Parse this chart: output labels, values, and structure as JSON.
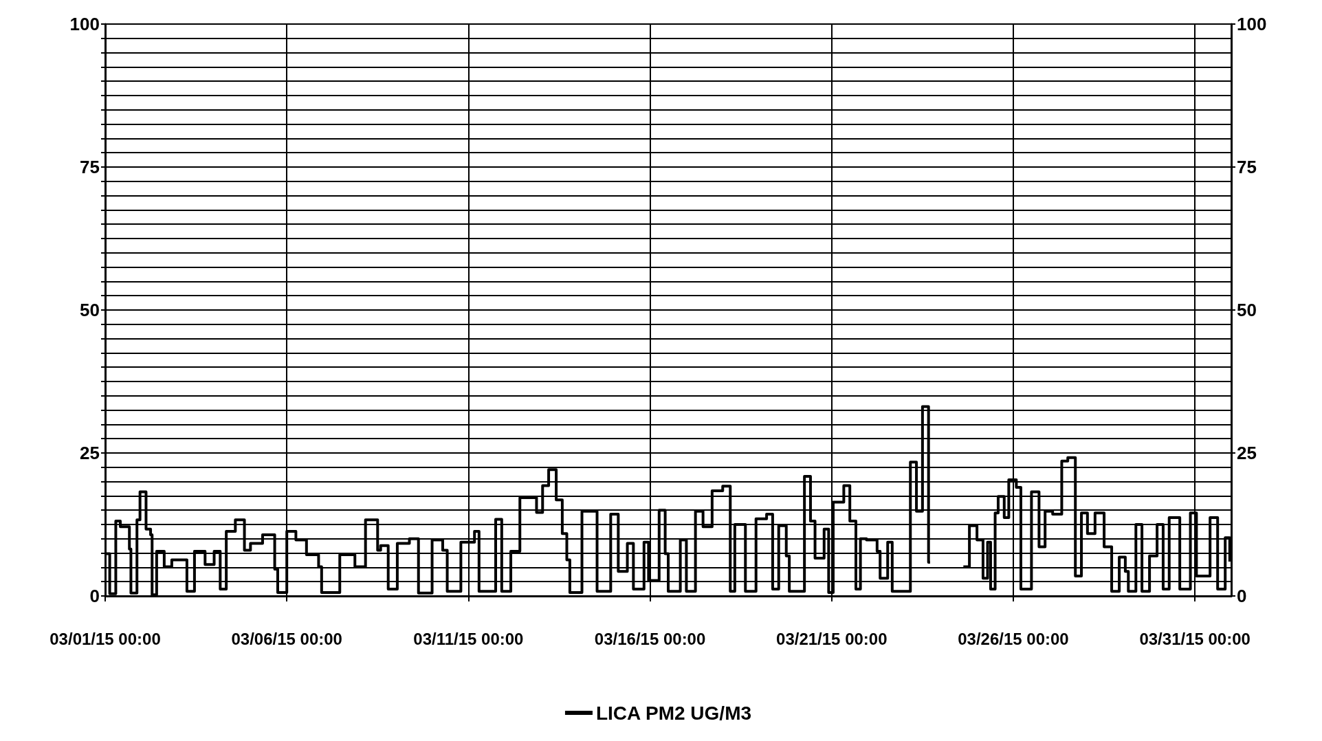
{
  "chart_data": {
    "type": "step",
    "legend": "bottom",
    "grid": true,
    "marker": "none",
    "line_style": "solid",
    "xlim": [
      "--03-01T00:00",
      "--04-01T00:00"
    ],
    "xticks": [
      {
        "value": "--03-01T00:00",
        "label": "03/01/15 00:00"
      },
      {
        "value": "--03-06T00:00",
        "label": "03/06/15 00:00"
      },
      {
        "value": "--03-11T00:00",
        "label": "03/11/15 00:00"
      },
      {
        "value": "--03-16T00:00",
        "label": "03/16/15 00:00"
      },
      {
        "value": "--03-21T00:00",
        "label": "03/21/15 00:00"
      },
      {
        "value": "--03-26T00:00",
        "label": "03/26/15 00:00"
      },
      {
        "value": "--03-31T00:00",
        "label": "03/31/15 00:00"
      }
    ],
    "ylim": [
      0,
      100
    ],
    "yticks": [
      0,
      {
        "value": 2.5,
        "label": null
      },
      {
        "value": 5,
        "label": null
      },
      {
        "value": 7.5,
        "label": null
      },
      {
        "value": 10,
        "label": null
      },
      {
        "value": 12.5,
        "label": null
      },
      {
        "value": 15,
        "label": null
      },
      {
        "value": 17.5,
        "label": null
      },
      {
        "value": 20,
        "label": null
      },
      {
        "value": 22.5,
        "label": null
      },
      25,
      {
        "value": 27.5,
        "label": null
      },
      {
        "value": 30,
        "label": null
      },
      {
        "value": 32.5,
        "label": null
      },
      {
        "value": 35,
        "label": null
      },
      {
        "value": 37.5,
        "label": null
      },
      {
        "value": 40,
        "label": null
      },
      {
        "value": 42.5,
        "label": null
      },
      {
        "value": 45,
        "label": null
      },
      {
        "value": 47.5,
        "label": null
      },
      50,
      {
        "value": 52.5,
        "label": null
      },
      {
        "value": 55,
        "label": null
      },
      {
        "value": 57.5,
        "label": null
      },
      {
        "value": 60,
        "label": null
      },
      {
        "value": 62.5,
        "label": null
      },
      {
        "value": 65,
        "label": null
      },
      {
        "value": 67.5,
        "label": null
      },
      {
        "value": 70,
        "label": null
      },
      {
        "value": 72.5,
        "label": null
      },
      75,
      {
        "value": 77.5,
        "label": null
      },
      {
        "value": 80,
        "label": null
      },
      {
        "value": 82.5,
        "label": null
      },
      {
        "value": 85,
        "label": null
      },
      {
        "value": 87.5,
        "label": null
      },
      {
        "value": 90,
        "label": null
      },
      {
        "value": 92.5,
        "label": null
      },
      {
        "value": 95,
        "label": null
      },
      {
        "value": 97.5,
        "label": null
      },
      100
    ],
    "y2lim": [
      0,
      100
    ],
    "y2ticks": [
      0,
      25,
      50,
      75,
      100
    ],
    "series": [
      {
        "name": "LICA PM2 UG/M3",
        "color": "#000000",
        "x": [
          "--03-01T00:00",
          "--03-01T03:00",
          "--03-01T07:00",
          "--03-01T10:00",
          "--03-01T16:00",
          "--03-01T17:00",
          "--03-01T21:00",
          "--03-01T23:00",
          "--03-02T03:00",
          "--03-02T06:00",
          "--03-02T07:00",
          "--03-02T10:00",
          "--03-02T15:00",
          "--03-02T20:00",
          "--03-03T06:00",
          "--03-03T11:00",
          "--03-03T18:00",
          "--03-04T00:00",
          "--03-04T04:00",
          "--03-04T08:00",
          "--03-04T14:00",
          "--03-04T20:00",
          "--03-05T00:00",
          "--03-05T08:00",
          "--03-05T16:00",
          "--03-05T18:00",
          "--03-06T00:00",
          "--03-06T06:00",
          "--03-06T13:00",
          "--03-06T21:00",
          "--03-06T23:00",
          "--03-07T11:00",
          "--03-07T21:00",
          "--03-08T04:00",
          "--03-08T12:00",
          "--03-08T14:00",
          "--03-08T19:00",
          "--03-09T01:00",
          "--03-09T09:00",
          "--03-09T15:00",
          "--03-10T00:00",
          "--03-10T07:00",
          "--03-10T10:00",
          "--03-10T19:00",
          "--03-11T04:00",
          "--03-11T07:00",
          "--03-11T18:00",
          "--03-11T22:00",
          "--03-12T04:00",
          "--03-12T10:00",
          "--03-12T16:00",
          "--03-12T21:00",
          "--03-13T01:00",
          "--03-13T05:00",
          "--03-13T10:00",
          "--03-13T14:00",
          "--03-13T17:00",
          "--03-13T19:00",
          "--03-14T03:00",
          "--03-14T13:00",
          "--03-14T22:00",
          "--03-15T03:00",
          "--03-15T09:00",
          "--03-15T13:00",
          "--03-15T20:00",
          "--03-15T23:00",
          "--03-16T06:00",
          "--03-16T10:00",
          "--03-16T12:00",
          "--03-16T20:00",
          "--03-17T00:00",
          "--03-17T06:00",
          "--03-17T11:00",
          "--03-17T17:00",
          "--03-18T00:00",
          "--03-18T05:00",
          "--03-18T08:00",
          "--03-18T15:00",
          "--03-18T22:00",
          "--03-19T05:00",
          "--03-19T09:00",
          "--03-19T13:00",
          "--03-19T18:00",
          "--03-19T20:00",
          "--03-20T06:00",
          "--03-20T10:00",
          "--03-20T13:00",
          "--03-20T19:00",
          "--03-20T22:00",
          "--03-21T01:00",
          "--03-21T08:00",
          "--03-21T12:00",
          "--03-21T16:00",
          "--03-21T19:00",
          "--03-21T23:00",
          "--03-22T06:00",
          "--03-22T08:00",
          "--03-22T13:00",
          "--03-22T16:00",
          "--03-23T04:00",
          "--03-23T08:00",
          "--03-23T12:00",
          "--03-23T16:00",
          "--03-23T17:00",
          "--03-24T15:00",
          "--03-24T19:00",
          "--03-25T00:00",
          "--03-25T04:00",
          "--03-25T07:00",
          "--03-25T09:00",
          "--03-25T12:00",
          "--03-25T14:00",
          "--03-25T18:00",
          "--03-25T21:00",
          "--03-26T02:00",
          "--03-26T05:00",
          "--03-26T12:00",
          "--03-26T17:00",
          "--03-26T21:00",
          "--03-27T02:00",
          "--03-27T08:00",
          "--03-27T12:00",
          "--03-27T17:00",
          "--03-27T21:00",
          "--03-28T01:00",
          "--03-28T06:00",
          "--03-28T12:00",
          "--03-28T17:00",
          "--03-28T22:00",
          "--03-29T02:00",
          "--03-29T04:00",
          "--03-29T09:00",
          "--03-29T13:00",
          "--03-29T18:00",
          "--03-29T23:00",
          "--03-30T03:00",
          "--03-30T07:00",
          "--03-30T14:00",
          "--03-30T21:00",
          "--03-31T01:00",
          "--03-31T10:00",
          "--03-31T15:00",
          "--03-31T20:00",
          "--03-31T23:00"
        ],
        "values": [
          7.4,
          0.4,
          13.1,
          12.1,
          8.2,
          0.5,
          13.3,
          18.2,
          11.7,
          10.7,
          0.2,
          7.8,
          5.1,
          6.3,
          0.8,
          7.8,
          5.5,
          7.8,
          1.2,
          11.3,
          13.3,
          8,
          9.2,
          10.7,
          4.7,
          0.6,
          11.3,
          9.8,
          7.2,
          5.1,
          0.6,
          7.2,
          5.1,
          13.3,
          8,
          8.8,
          1.2,
          9.2,
          10,
          0.5,
          9.8,
          8,
          0.8,
          9.4,
          11.3,
          0.8,
          13.4,
          0.8,
          7.8,
          17.2,
          17.2,
          14.6,
          19.3,
          22.1,
          16.8,
          10.9,
          6.3,
          0.6,
          14.8,
          0.8,
          14.3,
          4.3,
          9.2,
          1.2,
          9.4,
          2.7,
          15,
          7.4,
          0.8,
          9.8,
          0.8,
          14.8,
          12.1,
          18.4,
          19.2,
          0.8,
          12.5,
          0.8,
          13.5,
          14.3,
          1.2,
          12.3,
          7,
          0.8,
          20.9,
          13.1,
          6.6,
          11.7,
          0.6,
          16.4,
          19.3,
          13.1,
          1.2,
          10,
          9.8,
          7.8,
          3.1,
          9.4,
          0.8,
          23.4,
          14.8,
          33.1,
          5.9,
          null,
          5.1,
          12.3,
          9.8,
          3.1,
          9.4,
          1.2,
          14.5,
          17.4,
          13.7,
          20.3,
          19,
          1.2,
          18.2,
          8.6,
          14.8,
          14.3,
          23.6,
          24.2,
          3.5,
          14.5,
          10.9,
          14.5,
          8.6,
          0.8,
          6.8,
          4.3,
          0.8,
          12.5,
          0.8,
          7,
          12.5,
          1.2,
          13.7,
          1.2,
          14.5,
          3.5,
          13.7,
          1.2,
          10.2,
          6
        ]
      }
    ]
  }
}
